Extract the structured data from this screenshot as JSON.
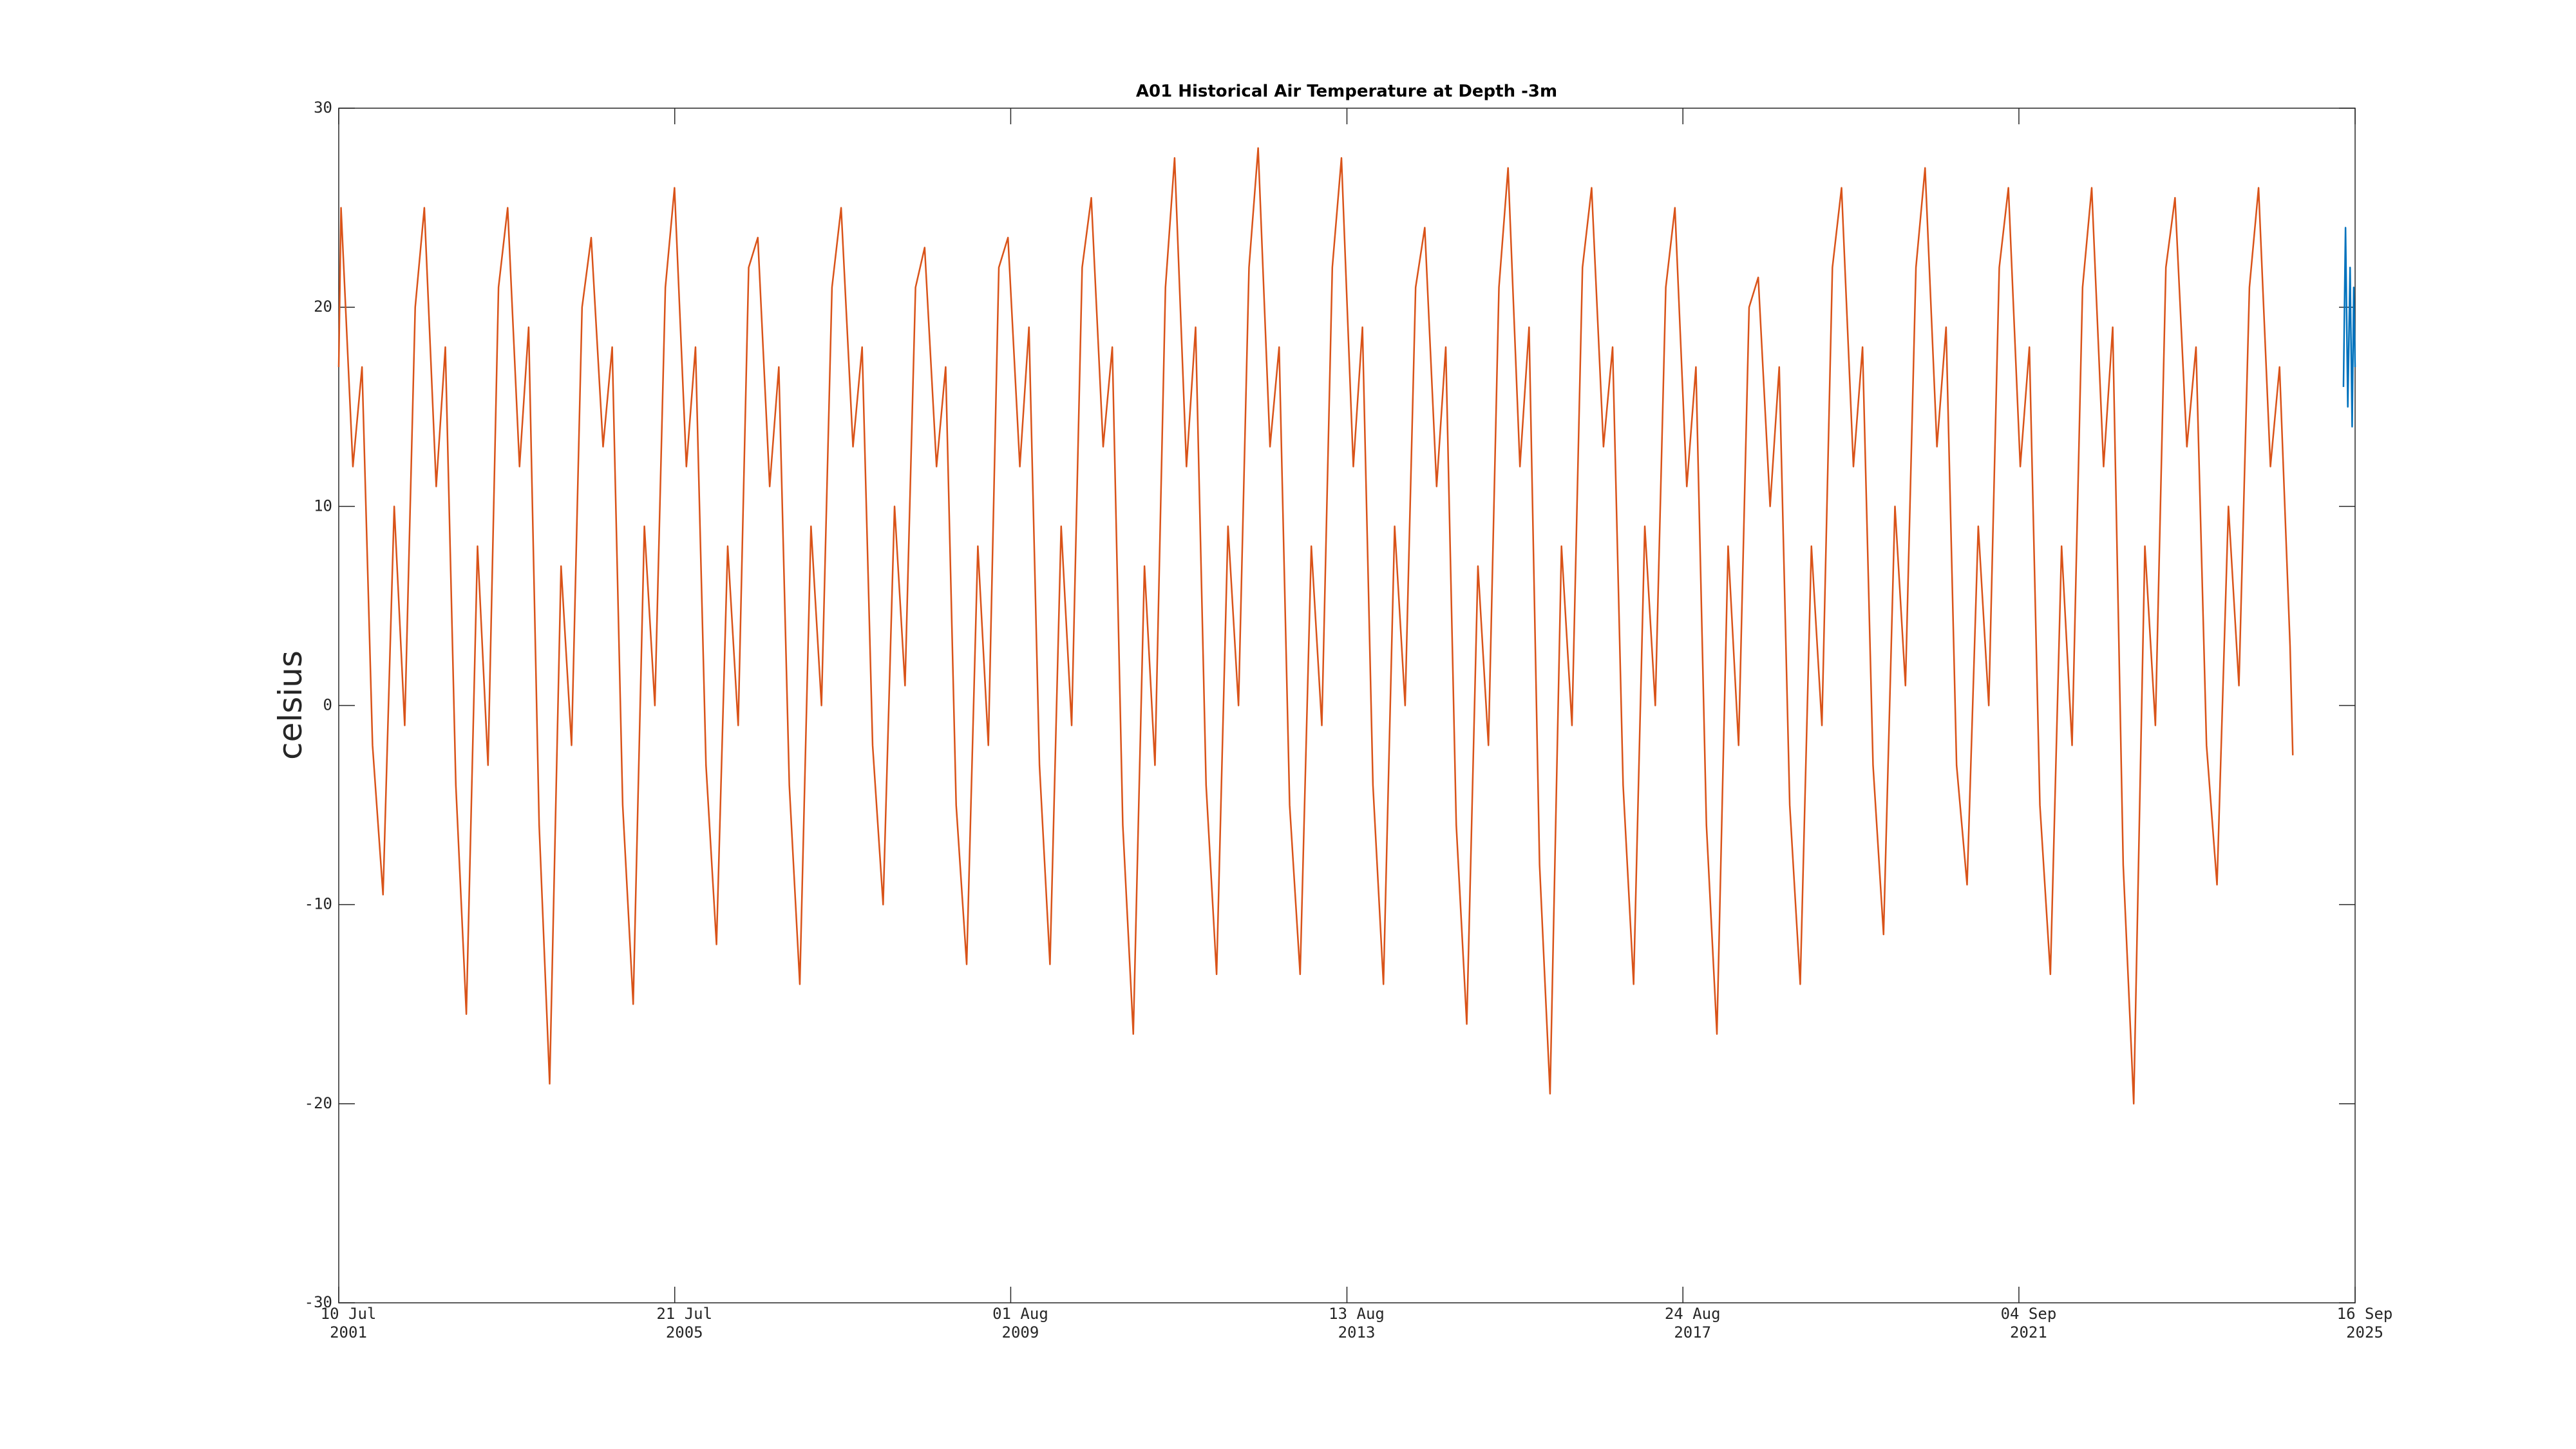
{
  "chart_data": {
    "type": "line",
    "title": "A01 Historical Air Temperature at Depth -3m",
    "y_label": "celsius",
    "xlim": [
      "2001-07-10",
      "2025-09-16"
    ],
    "xticks": [
      {
        "value": "2001-07-10",
        "label": [
          "10 Jul",
          "2001"
        ]
      },
      {
        "value": "2005-07-21",
        "label": [
          "21 Jul",
          "2005"
        ]
      },
      {
        "value": "2009-08-01",
        "label": [
          "01 Aug",
          "2009"
        ]
      },
      {
        "value": "2013-08-13",
        "label": [
          "13 Aug",
          "2013"
        ]
      },
      {
        "value": "2017-08-24",
        "label": [
          "24 Aug",
          "2017"
        ]
      },
      {
        "value": "2021-09-04",
        "label": [
          "04 Sep",
          "2021"
        ]
      },
      {
        "value": "2025-09-16",
        "label": [
          "16 Sep",
          "2025"
        ]
      }
    ],
    "ylim": [
      -30,
      30
    ],
    "yticks": [
      -30,
      -20,
      -10,
      0,
      10,
      20,
      30
    ],
    "grid": false,
    "series": [
      {
        "color": "#d95319",
        "x": [
          "2001-07-10",
          "2001-07-20",
          "2001-09-10",
          "2001-10-20",
          "2001-12-05",
          "2002-01-20",
          "2002-03-10",
          "2002-04-25",
          "2002-06-10",
          "2002-07-20",
          "2002-09-10",
          "2002-10-20",
          "2002-12-05",
          "2003-01-20",
          "2003-03-10",
          "2003-04-25",
          "2003-06-10",
          "2003-07-20",
          "2003-09-10",
          "2003-10-20",
          "2003-12-05",
          "2004-01-20",
          "2004-03-10",
          "2004-04-25",
          "2004-06-10",
          "2004-07-20",
          "2004-09-10",
          "2004-10-20",
          "2004-12-05",
          "2005-01-20",
          "2005-03-10",
          "2005-04-25",
          "2005-06-10",
          "2005-07-20",
          "2005-09-10",
          "2005-10-20",
          "2005-12-05",
          "2006-01-20",
          "2006-03-10",
          "2006-04-25",
          "2006-06-10",
          "2006-07-20",
          "2006-09-10",
          "2006-10-20",
          "2006-12-05",
          "2007-01-20",
          "2007-03-10",
          "2007-04-25",
          "2007-06-10",
          "2007-07-20",
          "2007-09-10",
          "2007-10-20",
          "2007-12-05",
          "2008-01-20",
          "2008-03-10",
          "2008-04-25",
          "2008-06-10",
          "2008-07-20",
          "2008-09-10",
          "2008-10-20",
          "2008-12-05",
          "2009-01-20",
          "2009-03-10",
          "2009-04-25",
          "2009-06-10",
          "2009-07-20",
          "2009-09-10",
          "2009-10-20",
          "2009-12-05",
          "2010-01-20",
          "2010-03-10",
          "2010-04-25",
          "2010-06-10",
          "2010-07-20",
          "2010-09-10",
          "2010-10-20",
          "2010-12-05",
          "2011-01-20",
          "2011-03-10",
          "2011-04-25",
          "2011-06-10",
          "2011-07-20",
          "2011-09-10",
          "2011-10-20",
          "2011-12-05",
          "2012-01-20",
          "2012-03-10",
          "2012-04-25",
          "2012-06-10",
          "2012-07-20",
          "2012-09-10",
          "2012-10-20",
          "2012-12-05",
          "2013-01-20",
          "2013-03-10",
          "2013-04-25",
          "2013-06-10",
          "2013-07-20",
          "2013-09-10",
          "2013-10-20",
          "2013-12-05",
          "2014-01-20",
          "2014-03-10",
          "2014-04-25",
          "2014-06-10",
          "2014-07-20",
          "2014-09-10",
          "2014-10-20",
          "2014-12-05",
          "2015-01-20",
          "2015-03-10",
          "2015-04-25",
          "2015-06-10",
          "2015-07-20",
          "2015-09-10",
          "2015-10-20",
          "2015-12-05",
          "2016-01-20",
          "2016-03-10",
          "2016-04-25",
          "2016-06-10",
          "2016-07-20",
          "2016-09-10",
          "2016-10-20",
          "2016-12-05",
          "2017-01-20",
          "2017-03-10",
          "2017-04-25",
          "2017-06-10",
          "2017-07-20",
          "2017-09-10",
          "2017-10-20",
          "2017-12-05",
          "2018-01-20",
          "2018-03-10",
          "2018-04-25",
          "2018-06-10",
          "2018-07-20",
          "2018-09-10",
          "2018-10-20",
          "2018-12-05",
          "2019-01-20",
          "2019-03-10",
          "2019-04-25",
          "2019-06-10",
          "2019-07-20",
          "2019-09-10",
          "2019-10-20",
          "2019-12-05",
          "2020-01-20",
          "2020-03-10",
          "2020-04-25",
          "2020-06-10",
          "2020-07-20",
          "2020-09-10",
          "2020-10-20",
          "2020-12-05",
          "2021-01-20",
          "2021-03-10",
          "2021-04-25",
          "2021-06-10",
          "2021-07-20",
          "2021-09-10",
          "2021-10-20",
          "2021-12-05",
          "2022-01-20",
          "2022-03-10",
          "2022-04-25",
          "2022-06-10",
          "2022-07-20",
          "2022-09-10",
          "2022-10-20",
          "2022-12-05",
          "2023-01-20",
          "2023-03-10",
          "2023-04-25",
          "2023-06-10",
          "2023-07-20",
          "2023-09-10",
          "2023-10-20",
          "2023-12-05",
          "2024-01-20",
          "2024-03-10",
          "2024-04-25",
          "2024-06-10",
          "2024-07-20",
          "2024-09-10",
          "2024-10-20",
          "2024-12-05",
          "2024-12-17"
        ],
        "values": [
          17,
          25,
          12,
          17,
          -2,
          -9.5,
          10,
          -1,
          20,
          25,
          11,
          18,
          -4,
          -15.5,
          8,
          -3,
          21,
          25,
          12,
          19,
          -6,
          -19,
          7,
          -2,
          20,
          23.5,
          13,
          18,
          -5,
          -15,
          9,
          0,
          21,
          26,
          12,
          18,
          -3,
          -12,
          8,
          -1,
          22,
          23.5,
          11,
          17,
          -4,
          -14,
          9,
          0,
          21,
          25,
          13,
          18,
          -2,
          -10,
          10,
          1,
          21,
          23,
          12,
          17,
          -5,
          -13,
          8,
          -2,
          22,
          23.5,
          12,
          19,
          -3,
          -13,
          9,
          -1,
          22,
          25.5,
          13,
          18,
          -6,
          -16.5,
          7,
          -3,
          21,
          27.5,
          12,
          19,
          -4,
          -13.5,
          9,
          0,
          22,
          28,
          13,
          18,
          -5,
          -13.5,
          8,
          -1,
          22,
          27.5,
          12,
          19,
          -4,
          -14,
          9,
          0,
          21,
          24,
          11,
          18,
          -6,
          -16,
          7,
          -2,
          21,
          27,
          12,
          19,
          -8,
          -19.5,
          8,
          -1,
          22,
          26,
          13,
          18,
          -4,
          -14,
          9,
          0,
          21,
          25,
          11,
          17,
          -6,
          -16.5,
          8,
          -2,
          20,
          21.5,
          10,
          17,
          -5,
          -14,
          8,
          -1,
          22,
          26,
          12,
          18,
          -3,
          -11.5,
          10,
          1,
          22,
          27,
          13,
          19,
          -3,
          -9,
          9,
          0,
          22,
          26,
          12,
          18,
          -5,
          -13.5,
          8,
          -2,
          21,
          26,
          12,
          19,
          -8,
          -20,
          8,
          -1,
          22,
          25.5,
          13,
          18,
          -2,
          -9,
          10,
          1,
          21,
          26,
          12,
          17,
          3,
          -2.5
        ]
      },
      {
        "color": "#0072bd",
        "x": [
          "2025-07-27",
          "2025-08-05",
          "2025-08-15",
          "2025-08-25",
          "2025-09-03",
          "2025-09-10",
          "2025-09-16"
        ],
        "values": [
          16,
          24,
          15,
          22,
          14,
          21,
          17
        ]
      }
    ]
  }
}
